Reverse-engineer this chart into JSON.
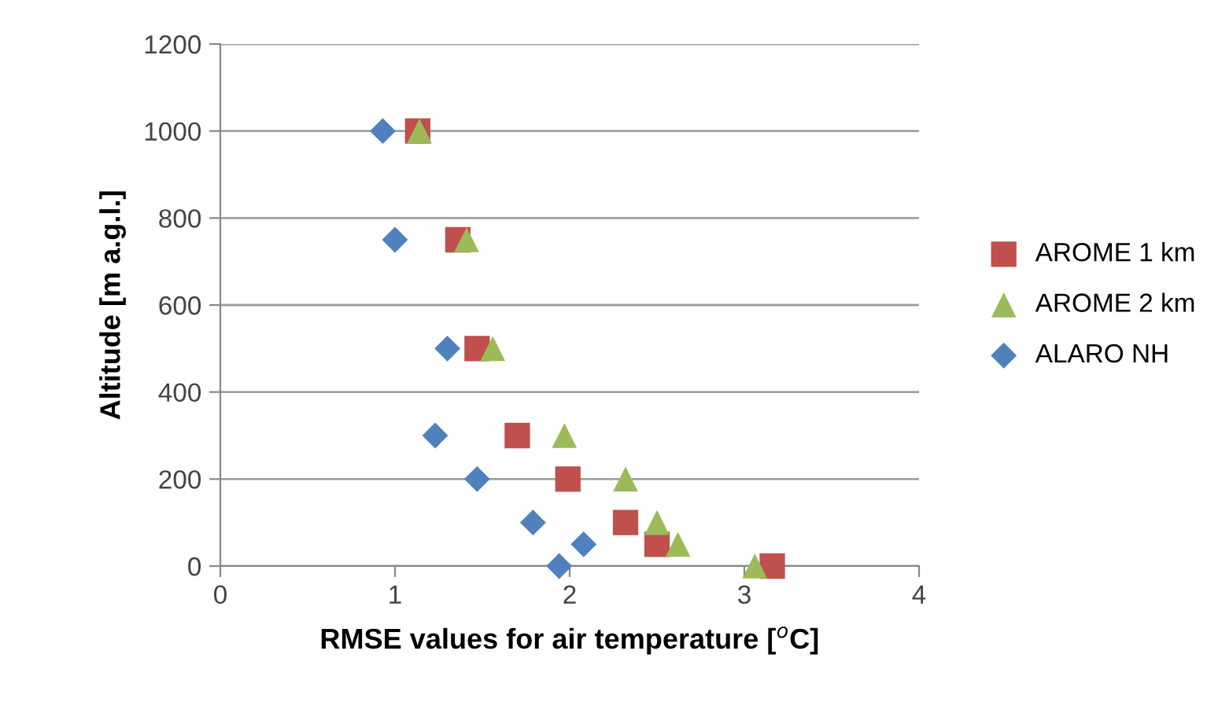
{
  "chart_data": {
    "type": "scatter",
    "xlabel": "RMSE values for air temperature [$^{o}$C]",
    "ylabel": "Altitude [m a.g.l.]",
    "xlim": [
      0,
      4
    ],
    "xticks": [
      0,
      1,
      2,
      3,
      4
    ],
    "ylim": [
      0,
      1200
    ],
    "yticks": [
      0,
      200,
      400,
      600,
      800,
      1000,
      1200
    ],
    "grid": "y",
    "legend": "right",
    "series": [
      {
        "name": "AROME 1 km",
        "color": "#c0504d",
        "marker": "square",
        "x": [
          1.13,
          1.36,
          1.47,
          1.7,
          1.99,
          2.32,
          2.5,
          3.16
        ],
        "values": [
          1000,
          750,
          500,
          300,
          200,
          100,
          50,
          0
        ]
      },
      {
        "name": "AROME 2 km",
        "color": "#9bbb59",
        "marker": "triangle",
        "x": [
          1.14,
          1.41,
          1.56,
          1.97,
          2.32,
          2.5,
          2.62,
          3.06
        ],
        "values": [
          1000,
          750,
          500,
          300,
          200,
          100,
          50,
          0
        ]
      },
      {
        "name": "ALARO NH",
        "color": "#4f81bd",
        "marker": "diamond",
        "x": [
          0.93,
          1.0,
          1.3,
          1.23,
          1.47,
          1.79,
          2.08,
          1.94
        ],
        "values": [
          1000,
          750,
          500,
          300,
          200,
          100,
          50,
          0
        ]
      }
    ]
  }
}
